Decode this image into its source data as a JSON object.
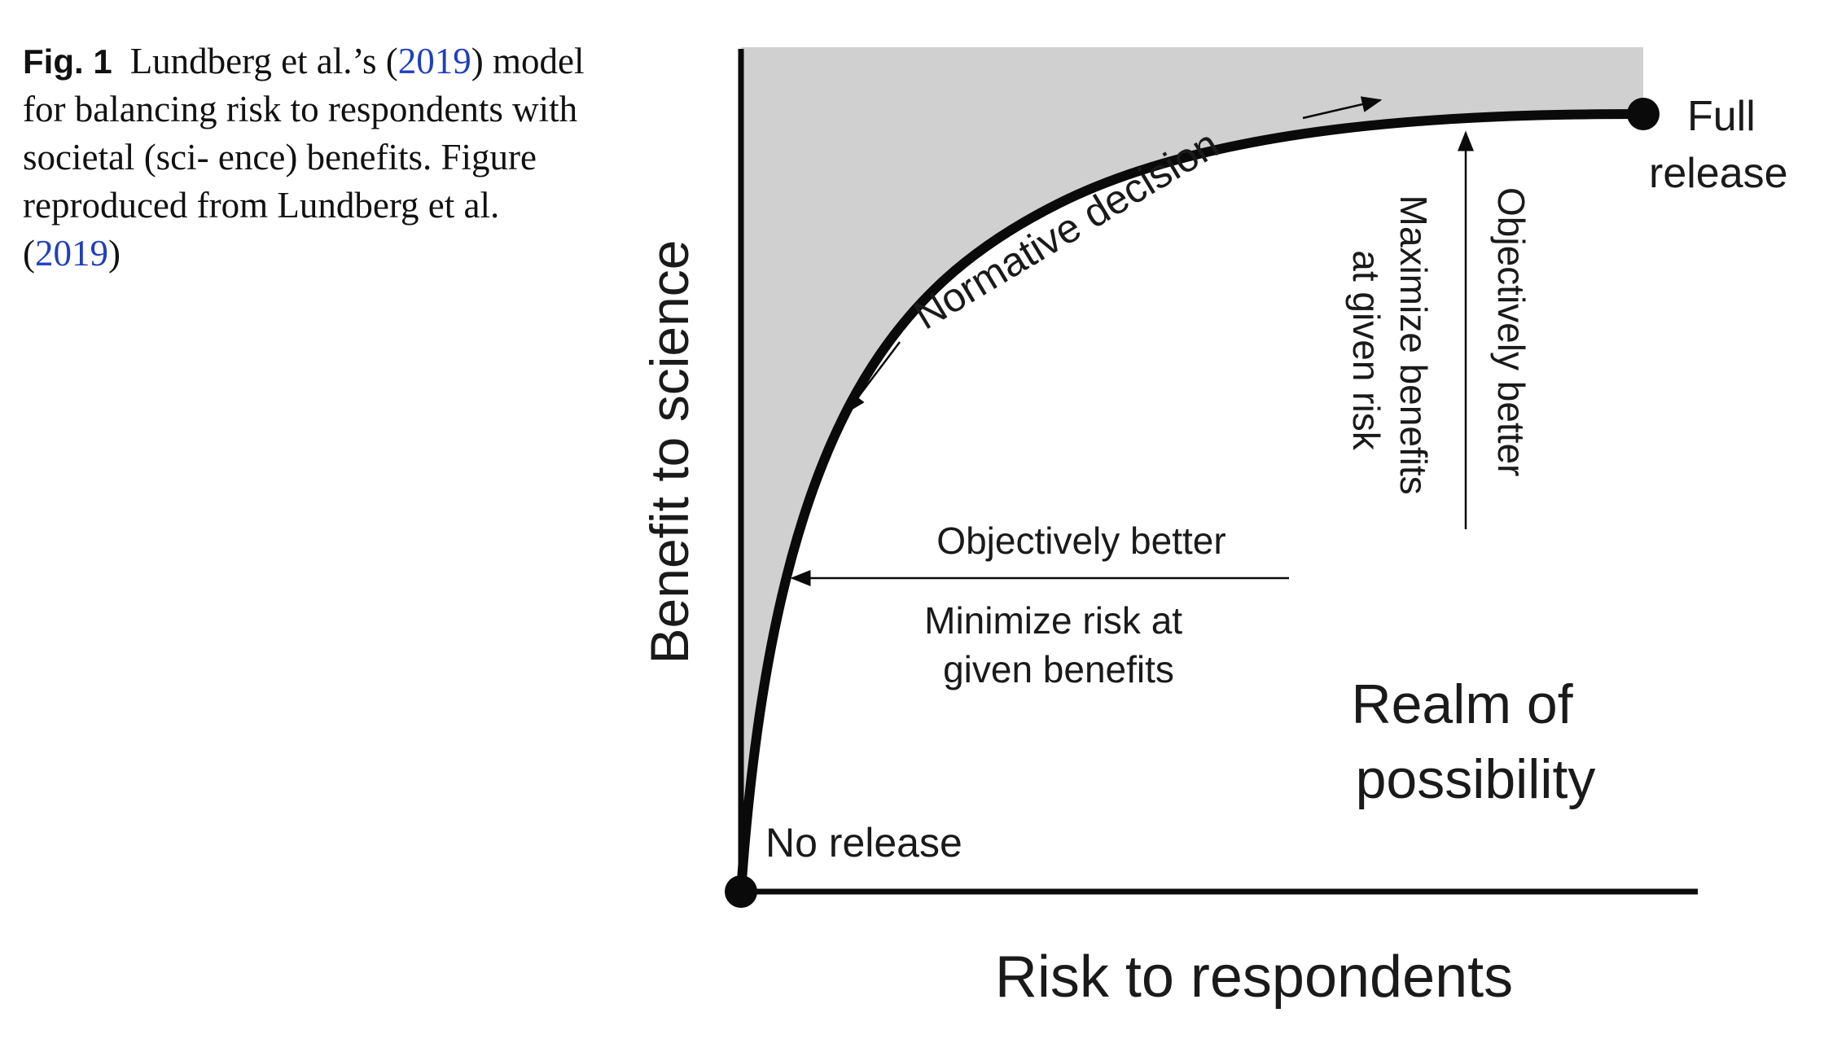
{
  "caption": {
    "label": "Fig. 1",
    "line1_pre": "Lundberg et al.’s (",
    "year": "2019",
    "line1_post": ")",
    "body": "model for balancing risk to respondents with societal (sci- ence) benefits. Figure reproduced from Lundberg et al. (",
    "end_year": "2019",
    "end": ")"
  },
  "diagram": {
    "y_axis_label": "Benefit to science",
    "x_axis_label": "Risk to respondents",
    "curve_label": "Normative decision",
    "full_release": [
      "Full",
      "release"
    ],
    "no_release": "No release",
    "horizontal_arrow": {
      "top_text": "Objectively better",
      "bottom_text": [
        "Minimize risk at",
        "given benefits"
      ]
    },
    "vertical_arrow": {
      "right_text": "Objectively better",
      "left_text": [
        "Maximize benefits",
        "at given risk"
      ]
    },
    "region_label": [
      "Realm of",
      "possibility"
    ],
    "colors": {
      "shaded_region": "#d0d0d0",
      "lines": "#0a0a0a",
      "citation_link": "#1f3fbf"
    }
  }
}
